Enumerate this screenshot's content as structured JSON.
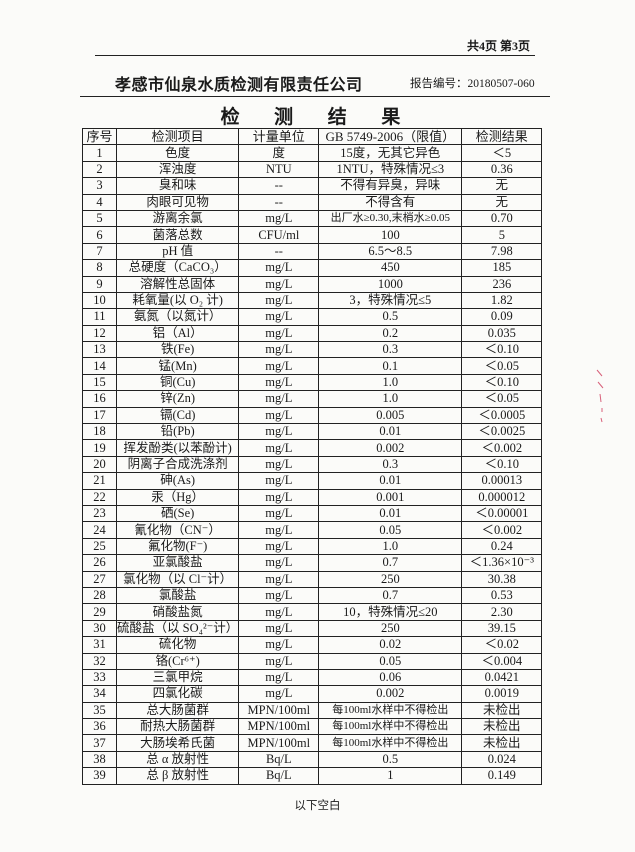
{
  "header": {
    "page_info": "共4页 第3页",
    "company": "孝感市仙泉水质检测有限责任公司",
    "report_number": "报告编号：20180507-060"
  },
  "title": "检 测 结 果",
  "table": {
    "columns": [
      "序号",
      "检测项目",
      "计量单位",
      "GB 5749-2006（限值）",
      "检测结果"
    ],
    "rows": [
      [
        "1",
        "色度",
        "度",
        "15度，无其它异色",
        "＜5"
      ],
      [
        "2",
        "浑浊度",
        "NTU",
        "1NTU，特殊情况≤3",
        "0.36"
      ],
      [
        "3",
        "臭和味",
        "--",
        "不得有异臭，异味",
        "无"
      ],
      [
        "4",
        "肉眼可见物",
        "--",
        "不得含有",
        "无"
      ],
      [
        "5",
        "游离余氯",
        "mg/L",
        "出厂水≥0.30,末梢水≥0.05",
        "0.70"
      ],
      [
        "6",
        "菌落总数",
        "CFU/ml",
        "100",
        "5"
      ],
      [
        "7",
        "pH 值",
        "--",
        "6.5～8.5",
        "7.98"
      ],
      [
        "8",
        "总硬度（CaCO₃）",
        "mg/L",
        "450",
        "185"
      ],
      [
        "9",
        "溶解性总固体",
        "mg/L",
        "1000",
        "236"
      ],
      [
        "10",
        "耗氧量(以 O₂ 计)",
        "mg/L",
        "3，特殊情况≤5",
        "1.82"
      ],
      [
        "11",
        "氨氮（以氮计）",
        "mg/L",
        "0.5",
        "0.09"
      ],
      [
        "12",
        "铝（Al）",
        "mg/L",
        "0.2",
        "0.035"
      ],
      [
        "13",
        "铁(Fe)",
        "mg/L",
        "0.3",
        "＜0.10"
      ],
      [
        "14",
        "锰(Mn)",
        "mg/L",
        "0.1",
        "＜0.05"
      ],
      [
        "15",
        "铜(Cu)",
        "mg/L",
        "1.0",
        "＜0.10"
      ],
      [
        "16",
        "锌(Zn)",
        "mg/L",
        "1.0",
        "＜0.05"
      ],
      [
        "17",
        "镉(Cd)",
        "mg/L",
        "0.005",
        "＜0.0005"
      ],
      [
        "18",
        "铅(Pb)",
        "mg/L",
        "0.01",
        "＜0.0025"
      ],
      [
        "19",
        "挥发酚类(以苯酚计)",
        "mg/L",
        "0.002",
        "＜0.002"
      ],
      [
        "20",
        "阴离子合成洗涤剂",
        "mg/L",
        "0.3",
        "＜0.10"
      ],
      [
        "21",
        "砷(As)",
        "mg/L",
        "0.01",
        "0.00013"
      ],
      [
        "22",
        "汞（Hg）",
        "mg/L",
        "0.001",
        "0.000012"
      ],
      [
        "23",
        "硒(Se)",
        "mg/L",
        "0.01",
        "＜0.00001"
      ],
      [
        "24",
        "氰化物（CN⁻）",
        "mg/L",
        "0.05",
        "＜0.002"
      ],
      [
        "25",
        "氟化物(F⁻)",
        "mg/L",
        "1.0",
        "0.24"
      ],
      [
        "26",
        "亚氯酸盐",
        "mg/L",
        "0.7",
        "＜1.36×10⁻³"
      ],
      [
        "27",
        "氯化物（以 Cl⁻计）",
        "mg/L",
        "250",
        "30.38"
      ],
      [
        "28",
        "氯酸盐",
        "mg/L",
        "0.7",
        "0.53"
      ],
      [
        "29",
        "硝酸盐氮",
        "mg/L",
        "10，特殊情况≤20",
        "2.30"
      ],
      [
        "30",
        "硫酸盐（以 SO₄²⁻计）",
        "mg/L",
        "250",
        "39.15"
      ],
      [
        "31",
        "硫化物",
        "mg/L",
        "0.02",
        "＜0.02"
      ],
      [
        "32",
        "铬(Cr⁶⁺)",
        "mg/L",
        "0.05",
        "＜0.004"
      ],
      [
        "33",
        "三氯甲烷",
        "mg/L",
        "0.06",
        "0.0421"
      ],
      [
        "34",
        "四氯化碳",
        "mg/L",
        "0.002",
        "0.0019"
      ],
      [
        "35",
        "总大肠菌群",
        "MPN/100ml",
        "每100ml水样中不得检出",
        "未检出"
      ],
      [
        "36",
        "耐热大肠菌群",
        "MPN/100ml",
        "每100ml水样中不得检出",
        "未检出"
      ],
      [
        "37",
        "大肠埃希氏菌",
        "MPN/100ml",
        "每100ml水样中不得检出",
        "未检出"
      ],
      [
        "38",
        "总 α 放射性",
        "Bq/L",
        "0.5",
        "0.024"
      ],
      [
        "39",
        "总 β 放射性",
        "Bq/L",
        "1",
        "0.149"
      ]
    ]
  },
  "footer": "以下空白"
}
